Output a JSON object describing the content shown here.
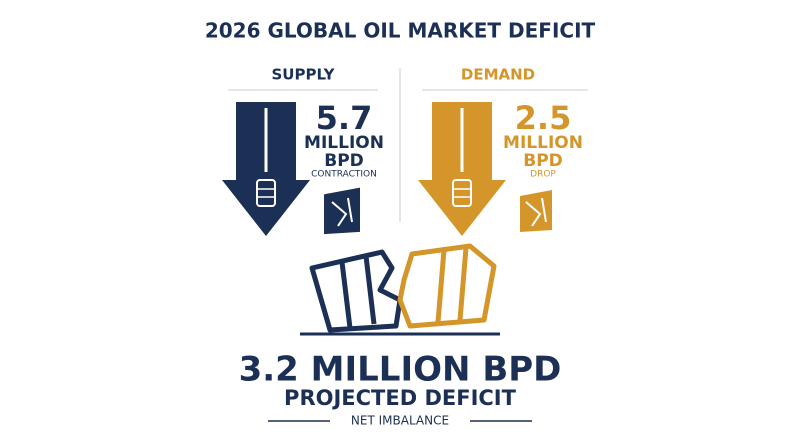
{
  "header": {
    "title": "2026 GLOBAL OIL MARKET DEFICIT"
  },
  "supply": {
    "label": "SUPPLY",
    "amount": "5.7",
    "unit_line1": "MILLION",
    "unit_line2": "BPD",
    "caption": "CONTRACTION"
  },
  "demand": {
    "label": "DEMAND",
    "amount": "2.5",
    "unit_line1": "MILLION",
    "unit_line2": "BPD",
    "caption": "DROP"
  },
  "summary": {
    "headline": "3.2 MILLION BPD",
    "subheadline": "PROJECTED DEFICIT",
    "caption": "NET IMBALANCE"
  }
}
